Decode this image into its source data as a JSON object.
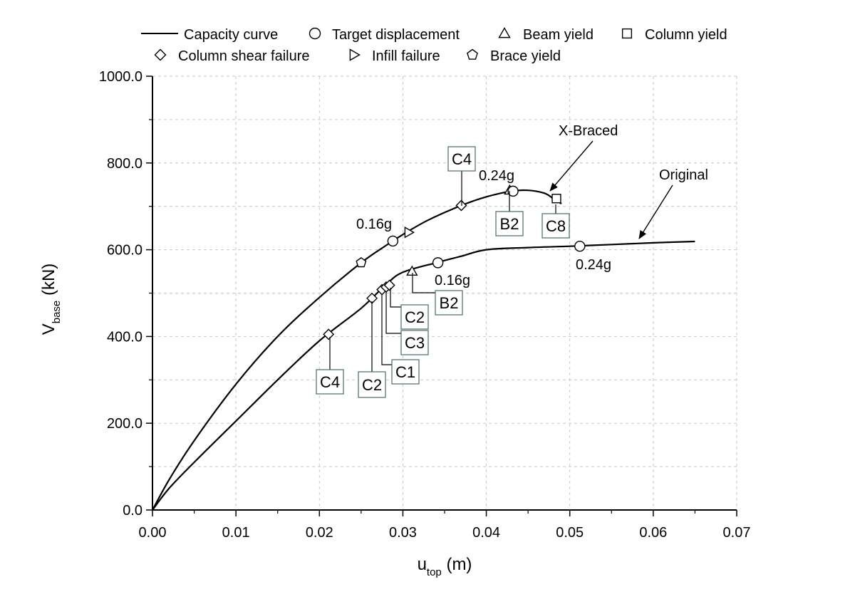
{
  "chart_data": {
    "type": "line",
    "xlabel": {
      "main": "u",
      "sub": "top",
      "unit": " (m)"
    },
    "ylabel": {
      "main": "V",
      "sub": "base",
      "unit": " (kN)"
    },
    "xlim": [
      0,
      0.07
    ],
    "ylim": [
      0,
      1000
    ],
    "x_ticks": [
      "0.00",
      "0.01",
      "0.02",
      "0.03",
      "0.04",
      "0.05",
      "0.06",
      "0.07"
    ],
    "y_ticks": [
      "0.0",
      "200.0",
      "400.0",
      "600.0",
      "800.0",
      "1000.0"
    ],
    "grid": true,
    "legend": {
      "placement": "top",
      "entries": [
        {
          "label": "Capacity curve",
          "marker": "line"
        },
        {
          "label": "Target displacement",
          "marker": "circle"
        },
        {
          "label": "Beam yield",
          "marker": "triangle-up"
        },
        {
          "label": "Column yield",
          "marker": "square"
        },
        {
          "label": "Column shear failure",
          "marker": "diamond"
        },
        {
          "label": "Infill failure",
          "marker": "triangle-right"
        },
        {
          "label": "Brace yield",
          "marker": "pentagon"
        }
      ]
    },
    "series": [
      {
        "name": "X-Braced",
        "x": [
          0,
          0.002,
          0.005,
          0.01,
          0.015,
          0.02,
          0.025,
          0.028,
          0.03,
          0.033,
          0.037,
          0.04,
          0.043,
          0.045,
          0.047,
          0.048,
          0.049
        ],
        "y": [
          0,
          70,
          160,
          290,
          400,
          490,
          570,
          610,
          635,
          668,
          702,
          722,
          735,
          737,
          730,
          718,
          706
        ],
        "markers": [
          {
            "type": "pentagon",
            "x": 0.025,
            "y": 570
          },
          {
            "type": "circle",
            "x": 0.0288,
            "y": 620
          },
          {
            "type": "triangle-right",
            "x": 0.0307,
            "y": 640
          },
          {
            "type": "diamond",
            "x": 0.037,
            "y": 702
          },
          {
            "type": "triangle-up",
            "x": 0.0428,
            "y": 737
          },
          {
            "type": "circle",
            "x": 0.0432,
            "y": 735
          },
          {
            "type": "square",
            "x": 0.0484,
            "y": 718
          }
        ]
      },
      {
        "name": "Original",
        "x": [
          0,
          0.002,
          0.005,
          0.01,
          0.015,
          0.02,
          0.025,
          0.028,
          0.03,
          0.034,
          0.037,
          0.04,
          0.045,
          0.05,
          0.055,
          0.06,
          0.065
        ],
        "y": [
          0,
          50,
          110,
          205,
          300,
          390,
          465,
          520,
          548,
          570,
          585,
          600,
          605,
          608,
          612,
          616,
          619
        ],
        "markers": [
          {
            "type": "diamond",
            "x": 0.0211,
            "y": 405
          },
          {
            "type": "diamond",
            "x": 0.0263,
            "y": 488
          },
          {
            "type": "diamond",
            "x": 0.0275,
            "y": 508
          },
          {
            "type": "diamond",
            "x": 0.028,
            "y": 514
          },
          {
            "type": "diamond",
            "x": 0.0284,
            "y": 518
          },
          {
            "type": "triangle-up",
            "x": 0.0311,
            "y": 550
          },
          {
            "type": "circle",
            "x": 0.0342,
            "y": 570
          },
          {
            "type": "circle",
            "x": 0.0512,
            "y": 608
          }
        ]
      }
    ],
    "annotations": [
      {
        "text": "0.16g",
        "kind": "plain"
      },
      {
        "text": "0.24g",
        "kind": "plain"
      },
      {
        "text": "0.16g",
        "kind": "plain"
      },
      {
        "text": "0.24g",
        "kind": "plain"
      },
      {
        "text": "X-Braced",
        "kind": "arrow"
      },
      {
        "text": "Original",
        "kind": "arrow"
      },
      {
        "text": "C4",
        "kind": "box"
      },
      {
        "text": "B2",
        "kind": "box"
      },
      {
        "text": "C8",
        "kind": "box"
      },
      {
        "text": "B2",
        "kind": "box"
      },
      {
        "text": "C2",
        "kind": "box"
      },
      {
        "text": "C3",
        "kind": "box"
      },
      {
        "text": "C1",
        "kind": "box"
      },
      {
        "text": "C2",
        "kind": "box"
      },
      {
        "text": "C4",
        "kind": "box"
      }
    ],
    "colors": {
      "curve": "#000000",
      "grid": "#c8c8c8",
      "box_border": "#4a6a6a"
    }
  }
}
